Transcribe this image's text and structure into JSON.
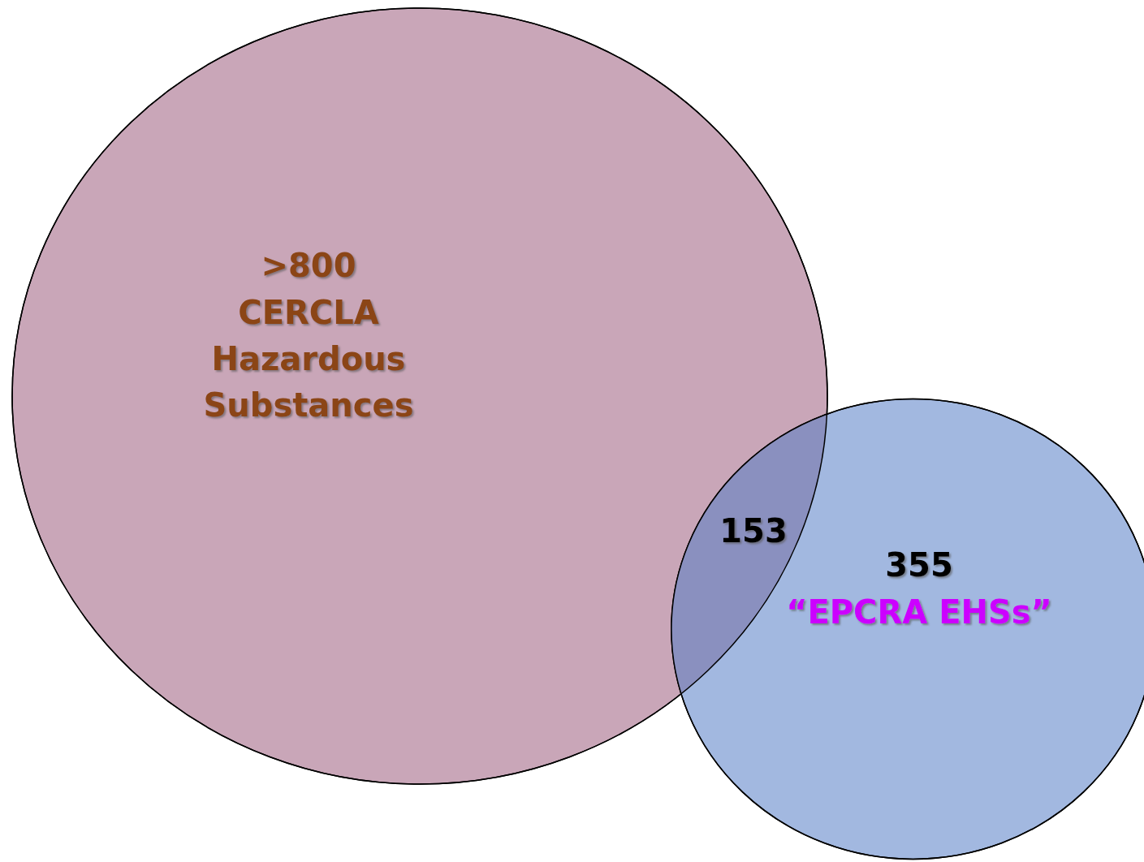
{
  "chart_data": {
    "type": "other",
    "categories": [
      "CERCLA Hazardous Substances",
      null,
      "“EPCRA EHSs”"
    ],
    "values": [
      800,
      153,
      355
    ],
    "value_labels": [
      ">800",
      "153",
      "355"
    ],
    "colors": [
      "#c9a6b8",
      "#8a90bf",
      "#a2b8e0"
    ]
  }
}
